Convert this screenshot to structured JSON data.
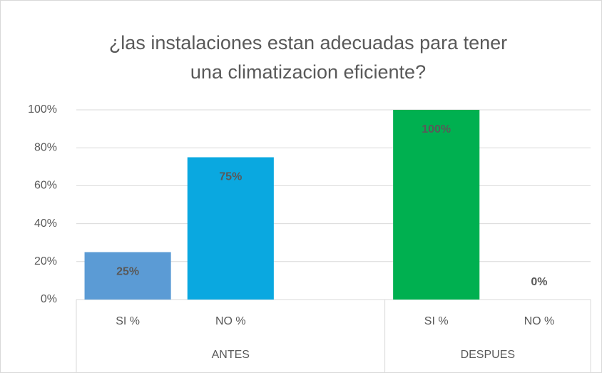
{
  "chart_data": {
    "type": "bar",
    "title": "¿las instalaciones estan adecuadas para tener una climatizacion eficiente?",
    "groups": [
      {
        "name": "ANTES",
        "categories": [
          "SI %",
          "NO %",
          null
        ],
        "values": [
          25,
          75,
          null
        ],
        "value_labels": [
          "25%",
          "75%",
          null
        ],
        "colors": [
          "#5b9bd5",
          "#0aa8e0",
          null
        ]
      },
      {
        "name": "DESPUES",
        "categories": [
          "SI %",
          "NO %"
        ],
        "values": [
          100,
          0
        ],
        "value_labels": [
          "100%",
          "0%"
        ],
        "colors": [
          "#00b050",
          "#ffc000"
        ]
      }
    ],
    "ylim": [
      0,
      100
    ],
    "yticks": [
      {
        "value": 0,
        "label": "0%"
      },
      {
        "value": 20,
        "label": "20%"
      },
      {
        "value": 40,
        "label": "40%"
      },
      {
        "value": 60,
        "label": "60%"
      },
      {
        "value": 80,
        "label": "80%"
      },
      {
        "value": 100,
        "label": "100%"
      }
    ],
    "grid": true
  }
}
